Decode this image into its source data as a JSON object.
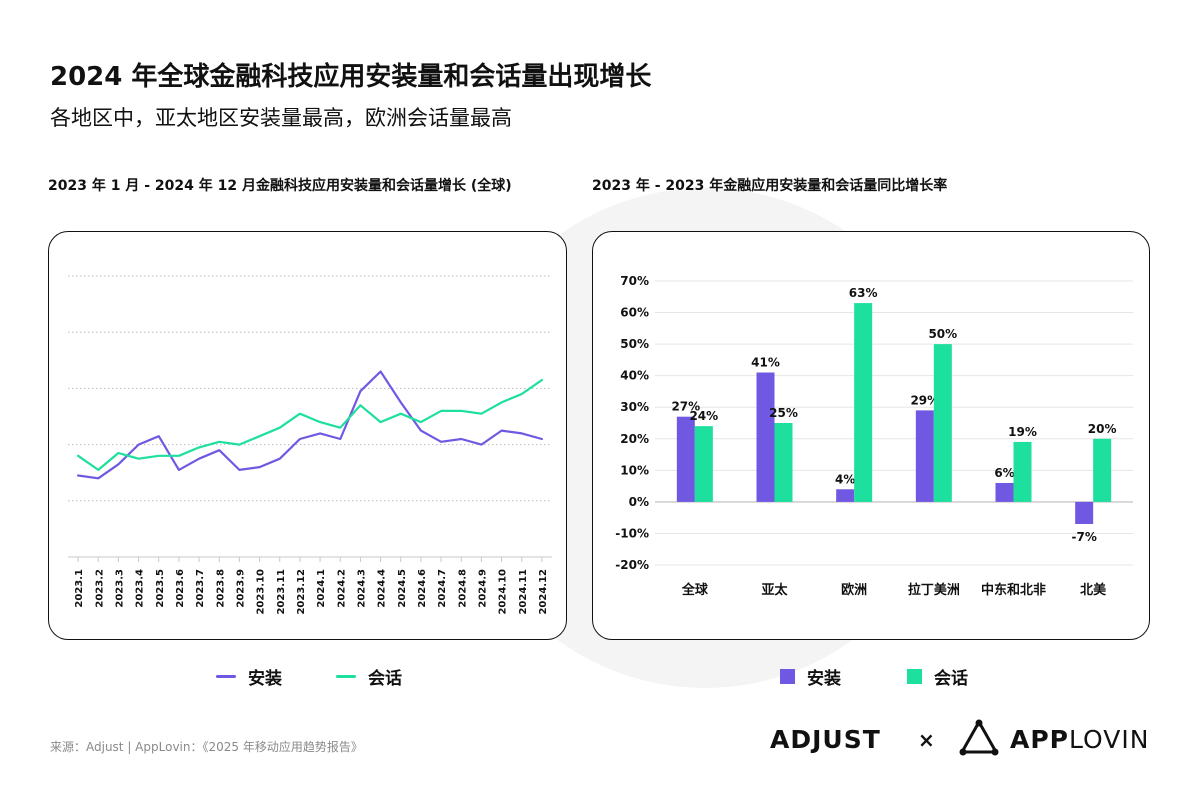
{
  "title": "2024 年全球金融科技应用安装量和会话量出现增长",
  "subtitle": "各地区中，亚太地区安装量最高，欧洲会话量最高",
  "colors": {
    "installs": "#7158e2",
    "sessions": "#1ddf9e",
    "grid": "#bcbcbc",
    "axis": "#c8c8c8",
    "text": "#111111"
  },
  "left_panel_title": "2023 年 1 月 - 2024 年 12 月金融科技应用安装量和会话量增长 (全球)",
  "right_panel_title": "2023 年 - 2023 年金融应用安装量和会话量同比增长率",
  "legend_left": {
    "installs": "安装",
    "sessions": "会话"
  },
  "legend_right": {
    "installs": "安装",
    "sessions": "会话"
  },
  "source": "来源：Adjust | AppLovin：《2025 年移动应用趋势报告》",
  "logos": {
    "adjust": "ADJUST",
    "times": "×",
    "app": "APP",
    "lovin": "LOVIN"
  },
  "chart_data": [
    {
      "type": "line",
      "title": "2023 年 1 月 - 2024 年 12 月金融科技应用安装量和会话量增长 (全球)",
      "x": [
        "2023.1",
        "2023.2",
        "2023.3",
        "2023.4",
        "2023.5",
        "2023.6",
        "2023.7",
        "2023.8",
        "2023.9",
        "2023.10",
        "2023.11",
        "2023.12",
        "2024.1",
        "2024.2",
        "2024.3",
        "2024.4",
        "2024.5",
        "2024.6",
        "2024.7",
        "2024.8",
        "2024.9",
        "2024.10",
        "2024.11",
        "2024.12"
      ],
      "ylim": [
        0,
        100
      ],
      "grid": true,
      "series": [
        {
          "name": "安装",
          "values": [
            29,
            28,
            33,
            40,
            43,
            31,
            35,
            38,
            31,
            32,
            35,
            42,
            44,
            42,
            59,
            66,
            55,
            45,
            41,
            42,
            40,
            45,
            44,
            42
          ]
        },
        {
          "name": "会话",
          "values": [
            36,
            31,
            37,
            35,
            36,
            36,
            39,
            41,
            40,
            43,
            46,
            51,
            48,
            46,
            54,
            48,
            51,
            48,
            52,
            52,
            51,
            55,
            58,
            63
          ]
        }
      ]
    },
    {
      "type": "bar",
      "title": "2023 年 - 2023 年金融应用安装量和会话量同比增长率",
      "categories": [
        "全球",
        "亚太",
        "欧洲",
        "拉丁美洲",
        "中东和北非",
        "北美"
      ],
      "ylim": [
        -20,
        70
      ],
      "yticks": [
        "-20%",
        "-10%",
        "0%",
        "10%",
        "20%",
        "30%",
        "40%",
        "50%",
        "60%",
        "70%"
      ],
      "grid": true,
      "series": [
        {
          "name": "安装",
          "values": [
            27,
            41,
            4,
            29,
            6,
            -7
          ],
          "labels": [
            "27%",
            "41%",
            "4%",
            "29%",
            "6%",
            "-7%"
          ]
        },
        {
          "name": "会话",
          "values": [
            24,
            25,
            63,
            50,
            19,
            20
          ],
          "labels": [
            "24%",
            "25%",
            "63%",
            "50%",
            "19%",
            "20%"
          ]
        }
      ]
    }
  ]
}
